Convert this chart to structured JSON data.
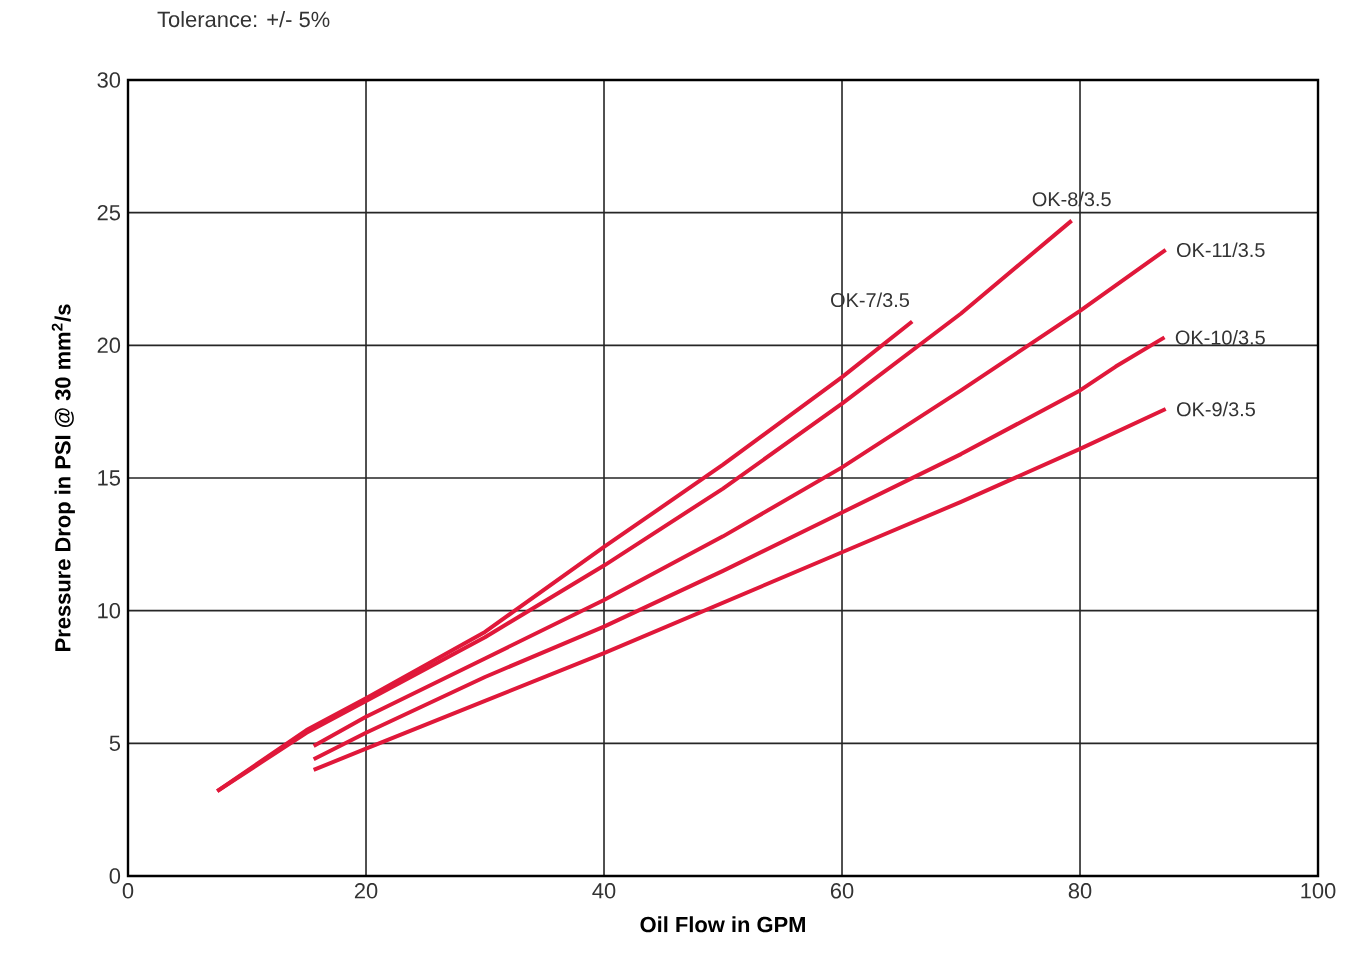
{
  "chart_data": {
    "type": "line",
    "xlabel": "Oil Flow in GPM",
    "ylabel": "Pressure Drop in PSI @ 30 mm$^{2}$/s",
    "annotations": [
      "Tolerance: +/- 5%"
    ],
    "xlim": [
      0,
      100
    ],
    "ylim": [
      0,
      30
    ],
    "xticks": [
      0,
      20,
      40,
      60,
      80,
      100
    ],
    "yticks": [
      0,
      5,
      10,
      15,
      20,
      25,
      30
    ],
    "grid": true,
    "legend": false,
    "marker": "none",
    "line_style": "solid",
    "series": [
      {
        "name": "OK-7/3.5",
        "color": "#e0183a",
        "x": [
          7.5,
          15,
          20,
          30,
          40,
          50,
          60,
          65.9
        ],
        "values": [
          3.2,
          5.5,
          6.7,
          9.2,
          12.4,
          15.5,
          18.8,
          20.9
        ]
      },
      {
        "name": "OK-8/3.5",
        "color": "#e0183a",
        "x": [
          7.5,
          15,
          20,
          30,
          40,
          50,
          60,
          70,
          79.3
        ],
        "values": [
          3.2,
          5.4,
          6.6,
          9.0,
          11.7,
          14.6,
          17.8,
          21.2,
          24.7
        ]
      },
      {
        "name": "OK-11/3.5",
        "color": "#e0183a",
        "x": [
          15.6,
          20,
          30,
          40,
          50,
          60,
          70,
          80,
          87.2
        ],
        "values": [
          4.9,
          6.0,
          8.2,
          10.4,
          12.8,
          15.4,
          18.3,
          21.3,
          23.6
        ]
      },
      {
        "name": "OK-10/3.5",
        "color": "#e0183a",
        "x": [
          15.6,
          20,
          30,
          40,
          50,
          60,
          70,
          80,
          83,
          87.1
        ],
        "values": [
          4.4,
          5.4,
          7.5,
          9.4,
          11.5,
          13.7,
          15.9,
          18.3,
          19.2,
          20.3
        ]
      },
      {
        "name": "OK-9/3.5",
        "color": "#e0183a",
        "x": [
          15.6,
          20,
          30,
          40,
          50,
          60,
          70,
          80,
          87.2
        ],
        "values": [
          4.0,
          4.8,
          6.6,
          8.4,
          10.3,
          12.2,
          14.1,
          16.1,
          17.6
        ]
      }
    ]
  }
}
